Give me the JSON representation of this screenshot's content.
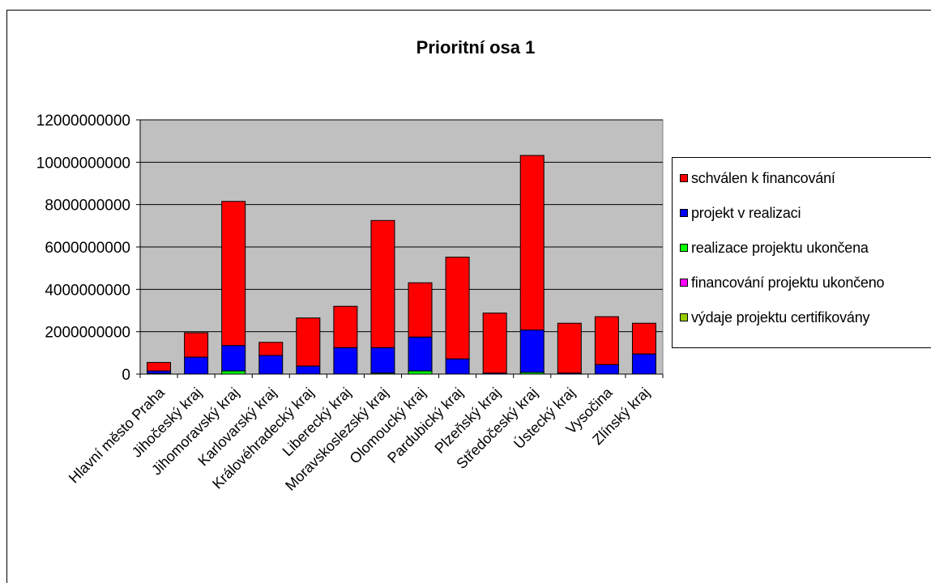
{
  "chart_data": {
    "type": "bar",
    "stacked": true,
    "title": "Prioritní osa 1",
    "xlabel": "",
    "ylabel": "",
    "ylim": [
      0,
      12000000000
    ],
    "yticks": [
      "0",
      "2000000000",
      "4000000000",
      "6000000000",
      "8000000000",
      "10000000000",
      "12000000000"
    ],
    "grid": true,
    "legend_position": "right",
    "plot_background": "#c0c0c0",
    "categories": [
      "Hlavní město Praha",
      "Jihočeský kraj",
      "Jihomoravský kraj",
      "Karlovarský kraj",
      "Královéhradecký kraj",
      "Liberecký kraj",
      "Moravskoslezský kraj",
      "Olomoucký kraj",
      "Pardubický kraj",
      "Plzeňský kraj",
      "Středočeský kraj",
      "Ústecký kraj",
      "Vysočina",
      "Zlínský kraj"
    ],
    "series": [
      {
        "name": "výdaje projektu certifikovány",
        "color": "#99cc00",
        "values": [
          0,
          0,
          0,
          0,
          0,
          0,
          0,
          0,
          0,
          0,
          0,
          0,
          0,
          0
        ]
      },
      {
        "name": "financování projektu ukončeno",
        "color": "#ff00ff",
        "values": [
          30000000,
          0,
          0,
          0,
          0,
          0,
          0,
          0,
          0,
          0,
          0,
          0,
          0,
          0
        ]
      },
      {
        "name": "realizace projektu ukončena",
        "color": "#00ff00",
        "values": [
          0,
          0,
          150000000,
          0,
          0,
          0,
          50000000,
          150000000,
          0,
          0,
          80000000,
          0,
          0,
          0
        ]
      },
      {
        "name": "projekt v realizaci",
        "color": "#0000ff",
        "values": [
          120000000,
          800000000,
          1200000000,
          880000000,
          380000000,
          1250000000,
          1200000000,
          1600000000,
          720000000,
          50000000,
          2000000000,
          50000000,
          450000000,
          950000000
        ]
      },
      {
        "name": "schválen k financování",
        "color": "#ff0000",
        "values": [
          400000000,
          1150000000,
          6800000000,
          620000000,
          2270000000,
          1950000000,
          6000000000,
          2560000000,
          4800000000,
          2830000000,
          8240000000,
          2350000000,
          2260000000,
          1450000000
        ]
      }
    ]
  }
}
